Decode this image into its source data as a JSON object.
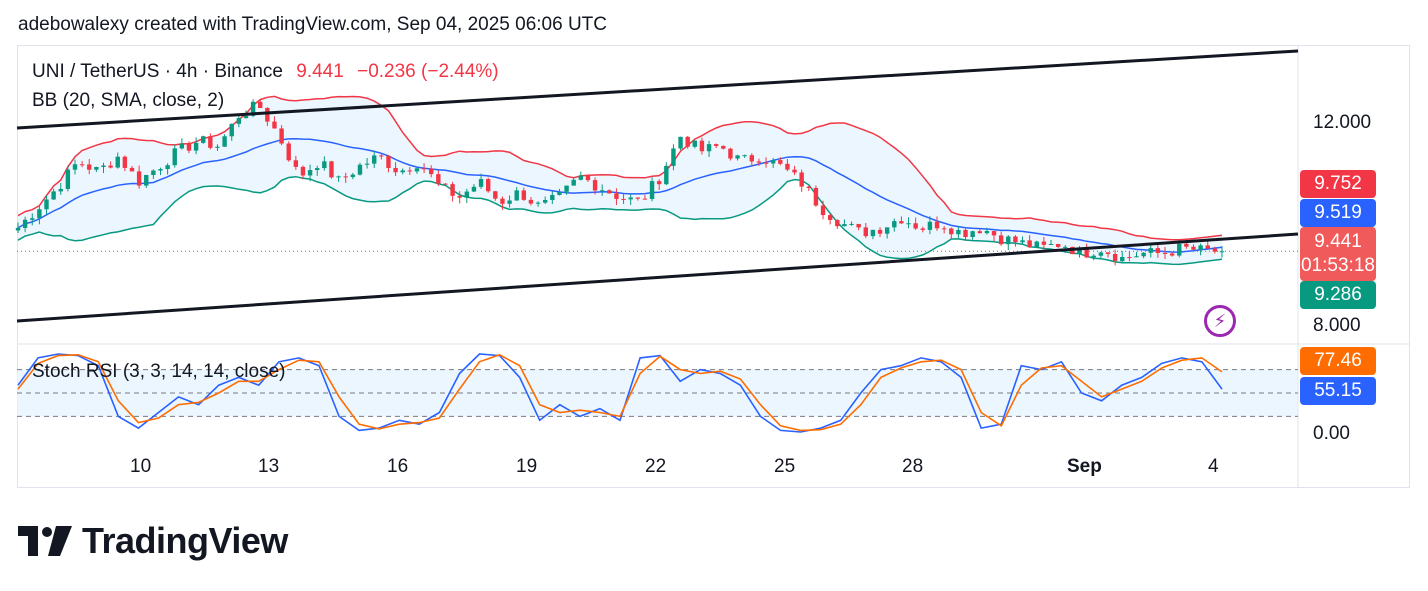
{
  "header": {
    "credit": "adebowalexy created with TradingView.com, Sep 04, 2025 06:06 UTC"
  },
  "legend": {
    "symbol": "UNI / TetherUS · 4h · Binance",
    "price": "9.441",
    "change": "−0.236 (−2.44%)",
    "bb": "BB (20, SMA, close, 2)",
    "stoch": "Stoch RSI (3, 3, 14, 14, close)"
  },
  "price_tags": [
    {
      "label": "9.752",
      "color": "#f23645"
    },
    {
      "label": "9.519",
      "color": "#2962ff"
    },
    {
      "label": "9.441",
      "sub": "01:53:18",
      "color": "#f05a5a"
    },
    {
      "label": "9.286",
      "color": "#089981"
    }
  ],
  "stoch_tags": [
    {
      "label": "77.46",
      "color": "#ff6d00"
    },
    {
      "label": "55.15",
      "color": "#2962ff"
    }
  ],
  "price_axis": [
    "12.000",
    "8.000"
  ],
  "stoch_axis": [
    "0.00"
  ],
  "x_axis": [
    "10",
    "13",
    "16",
    "19",
    "22",
    "25",
    "28",
    "Sep",
    "4"
  ],
  "logo_text": "TradingView",
  "colors": {
    "up": "#089981",
    "down": "#f23645",
    "basis": "#2962ff",
    "upper": "#f23645",
    "lower": "#089981",
    "k": "#2962ff",
    "d": "#ff6d00",
    "band_fill": "#e3f2fd",
    "trend": "#131722"
  },
  "chart_data": [
    {
      "type": "candlestick",
      "title": "UNI / TetherUS · 4h · Binance",
      "x_ticks": [
        "10",
        "13",
        "16",
        "19",
        "22",
        "25",
        "28",
        "Sep",
        "4"
      ],
      "y_ticks": [
        12.0,
        8.0
      ],
      "ylim": [
        7.9,
        12.4
      ],
      "last_price": 9.441,
      "close_path": [
        9.9,
        10.3,
        10.7,
        11.2,
        11.0,
        11.3,
        10.8,
        11.1,
        11.4,
        11.6,
        11.5,
        12.1,
        12.3,
        11.7,
        10.9,
        11.2,
        10.8,
        11.1,
        11.3,
        11.0,
        11.2,
        10.7,
        10.5,
        10.8,
        10.4,
        10.6,
        10.3,
        10.5,
        10.9,
        10.7,
        10.5,
        10.4,
        10.9,
        11.7,
        11.4,
        11.5,
        11.2,
        11.3,
        11.1,
        10.8,
        10.3,
        10.0,
        9.8,
        9.9,
        10.1,
        9.9,
        10.0,
        9.8,
        9.9,
        9.7,
        9.6,
        9.5,
        9.6,
        9.4,
        9.5,
        9.3,
        9.4,
        9.4,
        9.5,
        9.45,
        9.441
      ],
      "bollinger": {
        "upper": 9.752,
        "basis": 9.519,
        "lower": 9.286
      },
      "trendlines": [
        {
          "name": "Upper channel",
          "from": [
            "8",
            11.65
          ],
          "to": [
            "5",
            13.5
          ]
        },
        {
          "name": "Lower channel",
          "from": [
            "8",
            7.95
          ],
          "to": [
            "5",
            9.5
          ]
        }
      ]
    },
    {
      "type": "line",
      "title": "Stoch RSI (3, 3, 14, 14, close)",
      "ylim": [
        0,
        100
      ],
      "y_ticks": [
        0
      ],
      "bands": [
        20,
        50,
        80
      ],
      "series": [
        {
          "name": "K",
          "values": [
            60,
            95,
            100,
            98,
            85,
            20,
            5,
            25,
            45,
            35,
            60,
            70,
            60,
            90,
            95,
            85,
            20,
            2,
            5,
            15,
            10,
            25,
            75,
            100,
            98,
            70,
            15,
            35,
            20,
            30,
            15,
            95,
            98,
            65,
            80,
            75,
            60,
            20,
            2,
            0,
            5,
            15,
            50,
            80,
            85,
            95,
            90,
            70,
            5,
            10,
            85,
            80,
            90,
            50,
            40,
            60,
            70,
            88,
            95,
            90,
            55
          ],
          "last": 55.15
        },
        {
          "name": "D",
          "values": [
            55,
            88,
            98,
            99,
            90,
            40,
            12,
            18,
            35,
            38,
            50,
            65,
            65,
            80,
            92,
            90,
            45,
            10,
            4,
            10,
            12,
            18,
            55,
            90,
            99,
            85,
            35,
            25,
            28,
            25,
            20,
            75,
            97,
            80,
            75,
            78,
            68,
            35,
            8,
            2,
            3,
            10,
            35,
            70,
            82,
            90,
            92,
            80,
            25,
            8,
            60,
            82,
            85,
            65,
            45,
            55,
            65,
            82,
            92,
            95,
            77
          ],
          "last": 77.46
        }
      ]
    }
  ]
}
